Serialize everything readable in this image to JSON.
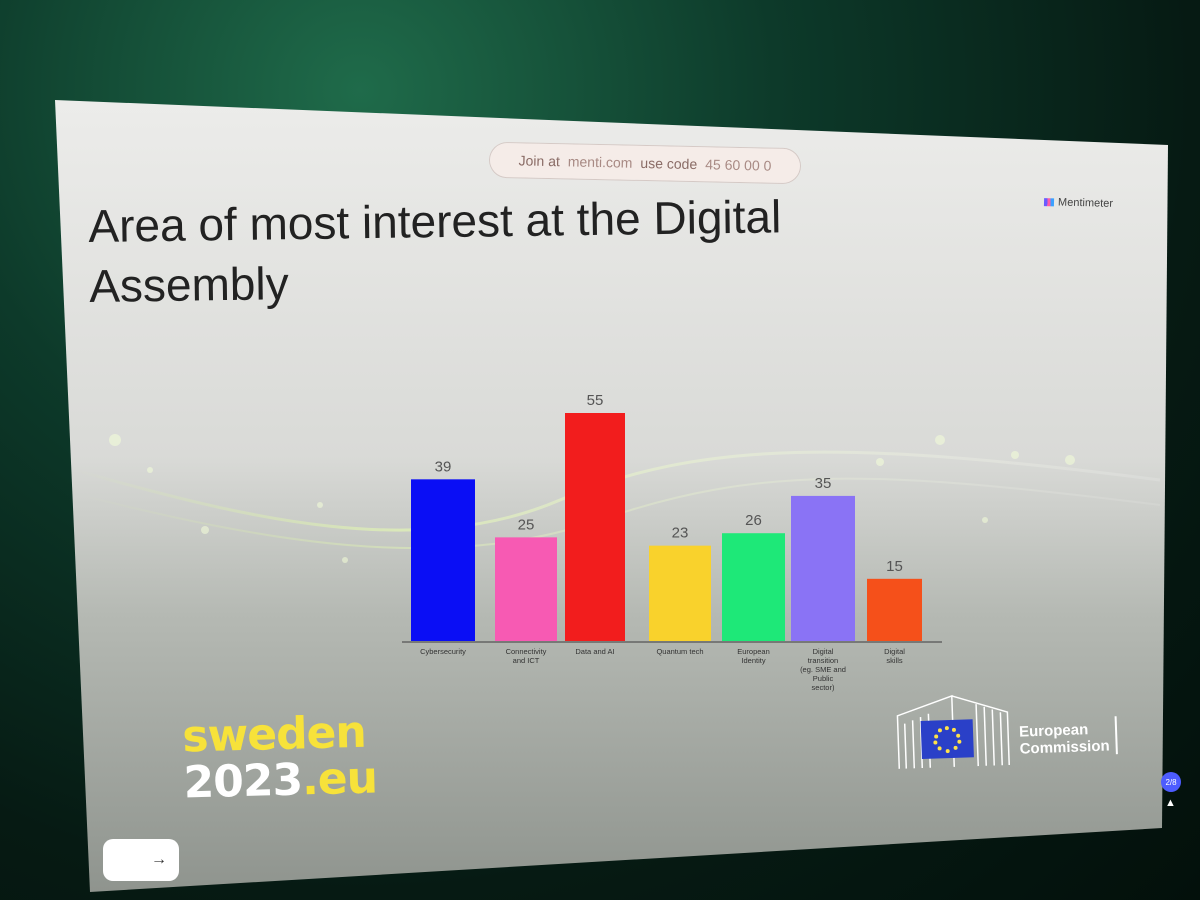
{
  "join": {
    "prefix": "Join at",
    "site": "menti.com",
    "code_label": "use code",
    "code": "45 60 00 0"
  },
  "brand": {
    "name": "Mentimeter"
  },
  "slide": {
    "title": "Area of most interest at the Digital Assembly"
  },
  "logos": {
    "sweden_line1": "sweden",
    "sweden_year": "2023",
    "sweden_dot": ".",
    "sweden_tld": "eu",
    "ec_line1": "European",
    "ec_line2": "Commission"
  },
  "controls": {
    "next_arrow": "→",
    "badge": "2/8"
  },
  "colors": {
    "sweden_yellow": "#f7e23a",
    "eu_blue": "#2a40c8"
  },
  "chart_data": {
    "type": "bar",
    "title": "Area of most interest at the Digital Assembly",
    "categories": [
      "Cybersecurity",
      "Connectivity and ICT",
      "Data and AI",
      "Quantum tech",
      "European Identity",
      "Digital transition (eg. SME and Public sector)",
      "Digital skills"
    ],
    "values": [
      39,
      25,
      55,
      23,
      26,
      35,
      15
    ],
    "colors": [
      "#0a0ef5",
      "#f75ab3",
      "#f21d1d",
      "#f9d22c",
      "#1ee878",
      "#8a73f5",
      "#f5501a"
    ],
    "grid": false,
    "legend": "none"
  }
}
